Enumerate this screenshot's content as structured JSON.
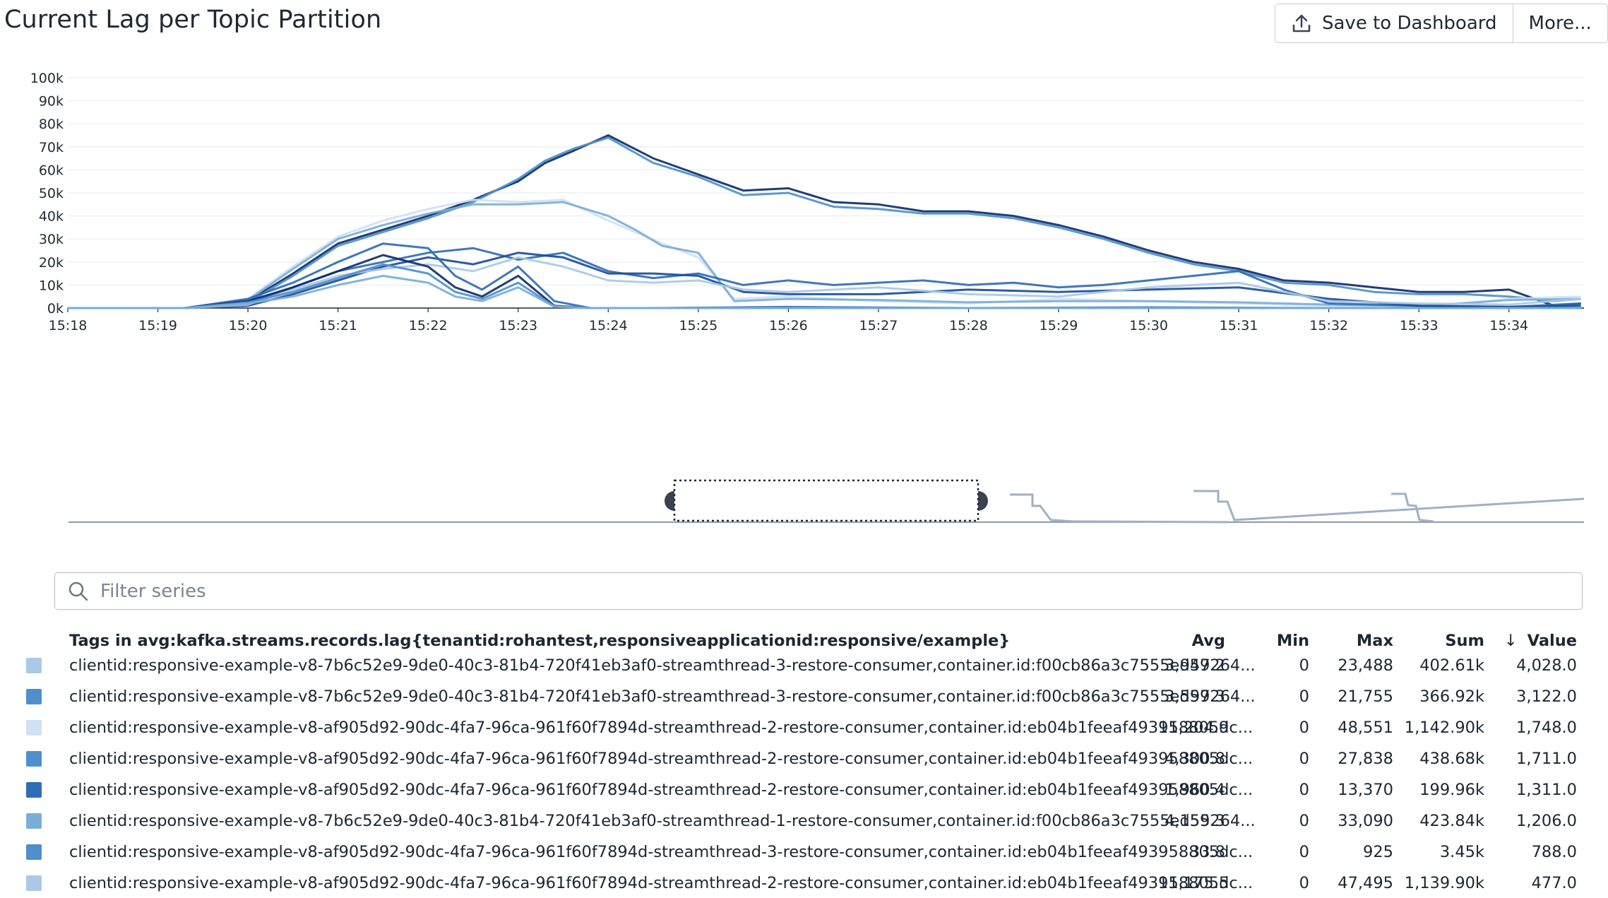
{
  "title": "Current Lag per Topic Partition",
  "toolbar": {
    "save_label": "Save to Dashboard",
    "more_label": "More..."
  },
  "colors": {
    "grid": "#e6e9ed",
    "axis_text": "#1f2933",
    "series_palette": [
      "#0d2d6b",
      "#1b4d9a",
      "#2f6db4",
      "#4f8fcb",
      "#7aaed8",
      "#a9c9e6",
      "#d0e1f3"
    ]
  },
  "filter": {
    "placeholder": "Filter series",
    "icon": "search-icon"
  },
  "legend": {
    "tags_header": "Tags in avg:kafka.streams.records.lag{tenantid:rohantest,responsiveapplicationid:responsive/example}",
    "columns": {
      "avg": "Avg",
      "min": "Min",
      "max": "Max",
      "sum": "Sum",
      "value": "Value"
    },
    "sort_icon": "arrow-down-icon",
    "rows": [
      {
        "color": "#a9c9e6",
        "tags": "clientid:responsive-example-v8-7b6c52e9-9de0-40c3-81b4-720f41eb3af0-streamthread-3-restore-consumer,container.id:f00cb86a3c7555ed59264...",
        "avg": "3,947.2",
        "min": "0",
        "max": "23,488",
        "sum": "402.61k",
        "value": "4,028.0"
      },
      {
        "color": "#4f8fcb",
        "tags": "clientid:responsive-example-v8-7b6c52e9-9de0-40c3-81b4-720f41eb3af0-streamthread-3-restore-consumer,container.id:f00cb86a3c7555ed59264...",
        "avg": "3,597.3",
        "min": "0",
        "max": "21,755",
        "sum": "366.92k",
        "value": "3,122.0"
      },
      {
        "color": "#d0e1f3",
        "tags": "clientid:responsive-example-v8-af905d92-90dc-4fa7-96ca-961f60f7894d-streamthread-2-restore-consumer,container.id:eb04b1feeaf493958805dc...",
        "avg": "11,204.9",
        "min": "0",
        "max": "48,551",
        "sum": "1,142.90k",
        "value": "1,748.0"
      },
      {
        "color": "#4f8fcb",
        "tags": "clientid:responsive-example-v8-af905d92-90dc-4fa7-96ca-961f60f7894d-streamthread-2-restore-consumer,container.id:eb04b1feeaf493958805dc...",
        "avg": "4,300.8",
        "min": "0",
        "max": "27,838",
        "sum": "438.68k",
        "value": "1,711.0"
      },
      {
        "color": "#2f6db4",
        "tags": "clientid:responsive-example-v8-af905d92-90dc-4fa7-96ca-961f60f7894d-streamthread-2-restore-consumer,container.id:eb04b1feeaf493958805dc...",
        "avg": "1,960.4",
        "min": "0",
        "max": "13,370",
        "sum": "199.96k",
        "value": "1,311.0"
      },
      {
        "color": "#7aaed8",
        "tags": "clientid:responsive-example-v8-7b6c52e9-9de0-40c3-81b4-720f41eb3af0-streamthread-1-restore-consumer,container.id:f00cb86a3c7555ed59264...",
        "avg": "4,155.3",
        "min": "0",
        "max": "33,090",
        "sum": "423.84k",
        "value": "1,206.0"
      },
      {
        "color": "#4f8fcb",
        "tags": "clientid:responsive-example-v8-af905d92-90dc-4fa7-96ca-961f60f7894d-streamthread-3-restore-consumer,container.id:eb04b1feeaf493958805dc...",
        "avg": "33.8",
        "min": "0",
        "max": "925",
        "sum": "3.45k",
        "value": "788.0"
      },
      {
        "color": "#a9c9e6",
        "tags": "clientid:responsive-example-v8-af905d92-90dc-4fa7-96ca-961f60f7894d-streamthread-2-restore-consumer,container.id:eb04b1feeaf493958805dc...",
        "avg": "11,175.5",
        "min": "0",
        "max": "47,495",
        "sum": "1,139.90k",
        "value": "477.0"
      }
    ]
  },
  "chart_data": {
    "type": "line",
    "title": "Current Lag per Topic Partition",
    "xlabel": "",
    "ylabel": "",
    "xlim": [
      "15:18",
      "15:34:50"
    ],
    "ylim": [
      0,
      100000
    ],
    "y_ticks": [
      "0k",
      "10k",
      "20k",
      "30k",
      "40k",
      "50k",
      "60k",
      "70k",
      "80k",
      "90k",
      "100k"
    ],
    "x_ticks": [
      "15:18",
      "15:19",
      "15:20",
      "15:21",
      "15:22",
      "15:23",
      "15:24",
      "15:25",
      "15:26",
      "15:27",
      "15:28",
      "15:29",
      "15:30",
      "15:31",
      "15:32",
      "15:33",
      "15:34"
    ],
    "grid": "horizontal",
    "x_unit": "minutes",
    "series": [
      {
        "color": "#0d2d6b",
        "x": [
          0,
          1.3,
          2,
          2.5,
          3,
          3.5,
          4,
          4.5,
          5,
          5.3,
          5.6,
          6,
          6.5,
          7,
          7.5,
          8,
          8.5,
          9,
          9.5,
          10,
          10.5,
          11,
          11.5,
          12,
          12.5,
          13,
          13.5,
          14,
          14.5,
          15,
          15.5,
          16,
          16.5,
          16.8
        ],
        "y": [
          0,
          0,
          3000,
          15000,
          28000,
          34000,
          40000,
          47000,
          55000,
          63000,
          68000,
          75000,
          65000,
          58000,
          51000,
          52000,
          46000,
          45000,
          42000,
          42000,
          40000,
          36000,
          31000,
          25000,
          20000,
          17000,
          12000,
          11000,
          9000,
          7000,
          7000,
          8000,
          1000,
          2000
        ]
      },
      {
        "color": "#4f8fcb",
        "x": [
          0,
          1.3,
          2,
          2.5,
          3,
          3.5,
          4,
          4.5,
          5,
          5.3,
          5.6,
          6,
          6.5,
          7,
          7.5,
          8,
          8.5,
          9,
          9.5,
          10,
          10.5,
          11,
          11.5,
          12,
          12.5,
          13,
          13.5,
          14,
          14.5,
          15,
          15.5,
          16,
          16.5,
          16.8
        ],
        "y": [
          0,
          0,
          2500,
          14000,
          27000,
          33000,
          39000,
          46000,
          56000,
          64000,
          69000,
          74000,
          63000,
          57000,
          49000,
          50000,
          44000,
          43000,
          41000,
          41000,
          39000,
          35000,
          30000,
          24000,
          19000,
          16000,
          11000,
          10000,
          7000,
          6000,
          6000,
          5000,
          3000,
          4000
        ]
      },
      {
        "color": "#d0e1f3",
        "x": [
          0,
          1.3,
          2,
          2.5,
          3,
          3.5,
          4,
          4.5,
          5,
          5.5,
          6,
          6.3,
          6.6,
          7,
          7.4,
          8,
          9,
          10,
          11,
          12,
          13,
          14,
          15,
          16,
          16.8
        ],
        "y": [
          0,
          0,
          4000,
          18000,
          31000,
          38000,
          43000,
          47000,
          46000,
          47000,
          38000,
          33000,
          28000,
          22000,
          4000,
          5000,
          3000,
          2000,
          4000,
          3000,
          2000,
          1000,
          0,
          4000,
          5000
        ]
      },
      {
        "color": "#7aaed8",
        "x": [
          0,
          1.3,
          2,
          2.5,
          3,
          3.5,
          4,
          4.5,
          5,
          5.5,
          6,
          6.3,
          6.6,
          7,
          7.4,
          8,
          9,
          10,
          11,
          12,
          13,
          14,
          15,
          16,
          16.8
        ],
        "y": [
          0,
          0,
          3500,
          17000,
          30000,
          36000,
          41000,
          45000,
          45000,
          46000,
          40000,
          34000,
          27000,
          24000,
          3000,
          4000,
          3500,
          2500,
          3000,
          3000,
          2500,
          1500,
          800,
          3500,
          4000
        ]
      },
      {
        "color": "#2f6db4",
        "x": [
          0,
          1.3,
          2,
          2.5,
          3,
          3.5,
          4,
          4.5,
          5,
          5.5,
          6,
          6.5,
          7,
          7.5,
          8,
          8.5,
          9,
          9.5,
          10,
          10.5,
          11,
          11.5,
          12,
          12.5,
          13,
          13.5,
          14,
          15,
          16,
          16.8
        ],
        "y": [
          0,
          0,
          2000,
          9000,
          16000,
          20000,
          24000,
          26000,
          21000,
          24000,
          16000,
          13000,
          15000,
          10000,
          12000,
          10000,
          11000,
          12000,
          10000,
          11000,
          9000,
          10000,
          12000,
          14000,
          16000,
          8000,
          2000,
          1000,
          500,
          2000
        ]
      },
      {
        "color": "#1b4d9a",
        "x": [
          0,
          1.3,
          2,
          2.5,
          3,
          3.5,
          4,
          4.5,
          5,
          5.5,
          6,
          6.5,
          7,
          7.5,
          8,
          9,
          10,
          11,
          12,
          13,
          14,
          15,
          16,
          16.8
        ],
        "y": [
          0,
          0,
          1000,
          6000,
          12000,
          18000,
          22000,
          19000,
          24000,
          22000,
          15000,
          15000,
          14000,
          7000,
          6000,
          6000,
          8000,
          7000,
          8000,
          9000,
          4000,
          1000,
          500,
          1000
        ]
      },
      {
        "color": "#a9c9e6",
        "x": [
          0,
          1.3,
          2,
          2.5,
          3,
          3.5,
          4,
          4.5,
          5,
          5.5,
          6,
          6.5,
          7,
          7.5,
          8,
          9,
          10,
          11,
          12,
          13,
          14,
          15,
          16,
          16.8
        ],
        "y": [
          0,
          0,
          1500,
          8000,
          14000,
          17000,
          19000,
          16000,
          22000,
          18000,
          12000,
          11000,
          12000,
          8000,
          7000,
          9000,
          6000,
          5000,
          9000,
          11000,
          3000,
          2000,
          1500,
          4000
        ]
      },
      {
        "color": "#2f6db4",
        "x": [
          0,
          1.3,
          2,
          2.5,
          3,
          3.5,
          4,
          4.3,
          4.6,
          5,
          5.4,
          5.8,
          6.5,
          8,
          10,
          12,
          14,
          16,
          16.8
        ],
        "y": [
          0,
          0,
          4000,
          11000,
          20000,
          28000,
          26000,
          14000,
          8000,
          18000,
          3000,
          0,
          0,
          500,
          0,
          300,
          0,
          0,
          0
        ]
      },
      {
        "color": "#0d2d6b",
        "x": [
          0,
          1.3,
          2,
          2.5,
          3,
          3.5,
          4,
          4.3,
          4.6,
          5,
          5.4,
          5.8,
          6.5,
          8,
          10,
          12,
          14,
          16,
          16.8
        ],
        "y": [
          0,
          0,
          3000,
          9000,
          16000,
          23000,
          18000,
          9000,
          5000,
          14000,
          1000,
          0,
          0,
          0,
          0,
          0,
          0,
          0,
          0
        ]
      },
      {
        "color": "#4f8fcb",
        "x": [
          0,
          1.3,
          2,
          2.5,
          3,
          3.5,
          4,
          4.3,
          4.6,
          5,
          5.4,
          5.8,
          6.5,
          8,
          10,
          12,
          14,
          16,
          16.8
        ],
        "y": [
          0,
          0,
          2500,
          7000,
          13000,
          19000,
          15000,
          7000,
          4000,
          11000,
          800,
          0,
          0,
          0,
          0,
          0,
          0,
          0,
          0
        ]
      },
      {
        "color": "#7aaed8",
        "x": [
          0,
          1.3,
          2,
          2.5,
          3,
          3.5,
          4,
          4.3,
          4.6,
          5,
          5.4,
          5.8,
          6.5,
          8,
          10,
          12,
          14,
          16,
          16.8
        ],
        "y": [
          0,
          0,
          2000,
          5000,
          10000,
          14000,
          11000,
          5000,
          3000,
          9000,
          600,
          0,
          0,
          0,
          0,
          0,
          0,
          0,
          0
        ]
      }
    ]
  }
}
